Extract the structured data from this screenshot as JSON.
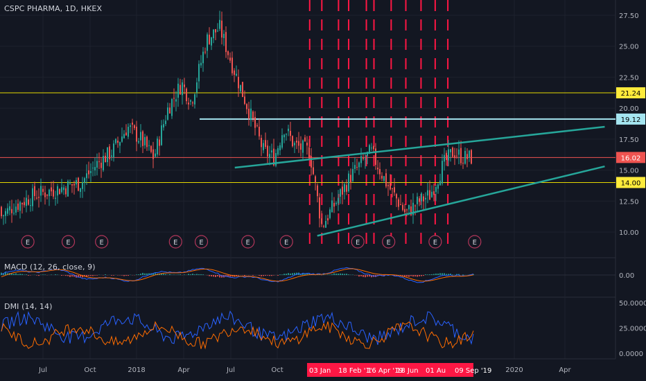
{
  "title": "CSPC PHARMA, 1D, HKEX",
  "indicators": {
    "macd": "MACD (12, 26, close, 9)",
    "dmi": "DMI (14, 14)"
  },
  "price_labels": [
    {
      "text": "21.24",
      "value": 21.24,
      "bg": "#ffeb3b",
      "fg": "#000000"
    },
    {
      "text": "19.12",
      "value": 19.12,
      "bg": "#a5e5f0",
      "fg": "#000000"
    },
    {
      "text": "16.02",
      "value": 16.02,
      "bg": "#ef5350",
      "fg": "#ffffff"
    },
    {
      "text": "14.00",
      "value": 14.0,
      "bg": "#ffeb3b",
      "fg": "#000000"
    }
  ],
  "date_tags": [
    "03 Jan",
    "18 Feb '1'",
    "16 Apr '19",
    "18 Jun",
    "01 Au",
    "09 Sep '19"
  ],
  "earnings_marker": "E",
  "chart_data": [
    {
      "type": "candlestick",
      "title": "CSPC PHARMA, 1D, HKEX",
      "x_ticks": [
        "Jul",
        "Oct",
        "2018",
        "Apr",
        "Jul",
        "Oct",
        "2020",
        "Apr"
      ],
      "y_ticks": [
        10.0,
        12.5,
        15.0,
        17.5,
        20.0,
        22.5,
        25.0,
        27.5
      ],
      "ylim": [
        8.2,
        28.6
      ],
      "price_path": [
        [
          "2017-05-01",
          12.0
        ],
        [
          "2017-06-15",
          13.0
        ],
        [
          "2017-08-01",
          13.5
        ],
        [
          "2017-09-15",
          14.0
        ],
        [
          "2017-10-15",
          15.5
        ],
        [
          "2017-11-15",
          16.5
        ],
        [
          "2017-12-15",
          18.5
        ],
        [
          "2018-01-10",
          17.5
        ],
        [
          "2018-02-05",
          16.0
        ],
        [
          "2018-03-05",
          20.0
        ],
        [
          "2018-04-01",
          22.0
        ],
        [
          "2018-04-20",
          20.5
        ],
        [
          "2018-05-20",
          25.5
        ],
        [
          "2018-06-15",
          26.5
        ],
        [
          "2018-07-10",
          23.5
        ],
        [
          "2018-08-10",
          20.0
        ],
        [
          "2018-09-10",
          16.5
        ],
        [
          "2018-10-01",
          16.0
        ],
        [
          "2018-10-20",
          18.5
        ],
        [
          "2018-11-10",
          17.0
        ],
        [
          "2018-12-10",
          16.5
        ],
        [
          "2019-01-03",
          10.5
        ],
        [
          "2019-02-01",
          12.5
        ],
        [
          "2019-03-01",
          14.5
        ],
        [
          "2019-04-10",
          16.5
        ],
        [
          "2019-05-10",
          14.0
        ],
        [
          "2019-06-18",
          11.5
        ],
        [
          "2019-07-15",
          12.5
        ],
        [
          "2019-08-05",
          13.0
        ],
        [
          "2019-09-01",
          15.5
        ],
        [
          "2019-09-20",
          16.5
        ],
        [
          "2019-10-10",
          16.0
        ]
      ],
      "horizontal_lines": [
        {
          "label": "21.24",
          "value": 21.24,
          "color": "#e6d800"
        },
        {
          "label": "19.12",
          "value": 19.12,
          "color": "#a5e5f0"
        },
        {
          "label": "16.02",
          "value": 16.02,
          "color": "#ef5350"
        },
        {
          "label": "14.00",
          "value": 14.0,
          "color": "#e6d800"
        }
      ],
      "trendlines": [
        {
          "from": [
            "2018-07-15",
            15.2
          ],
          "to": [
            "2020-07-15",
            18.5
          ],
          "color": "#26a69a"
        },
        {
          "from": [
            "2018-12-25",
            9.7
          ],
          "to": [
            "2020-07-15",
            15.3
          ],
          "color": "#26a69a"
        }
      ],
      "vertical_marker_dates": [
        "2018-12-10",
        "2019-01-03",
        "2019-02-05",
        "2019-02-25",
        "2019-04-01",
        "2019-04-16",
        "2019-05-20",
        "2019-06-18",
        "2019-07-18",
        "2019-08-15",
        "2019-09-09"
      ],
      "earnings_dates": [
        "2017-06-01",
        "2017-08-20",
        "2017-10-25",
        "2018-03-20",
        "2018-05-10",
        "2018-08-10",
        "2018-10-25",
        "2019-03-15",
        "2019-05-15",
        "2019-08-15",
        "2019-11-01"
      ]
    },
    {
      "type": "line",
      "title": "MACD (12, 26, close, 9)",
      "y_ticks": [
        0.0
      ],
      "series": [
        {
          "color": "#2962ff"
        },
        {
          "color": "#ff6d00"
        }
      ]
    },
    {
      "type": "line",
      "title": "DMI (14, 14)",
      "y_ticks": [
        0.0,
        25.0,
        50.0
      ],
      "y_tick_labels": [
        "0.0000",
        "25.0000",
        "50.0000"
      ],
      "series": [
        {
          "color": "#2962ff"
        },
        {
          "color": "#ff6d00"
        }
      ]
    }
  ]
}
